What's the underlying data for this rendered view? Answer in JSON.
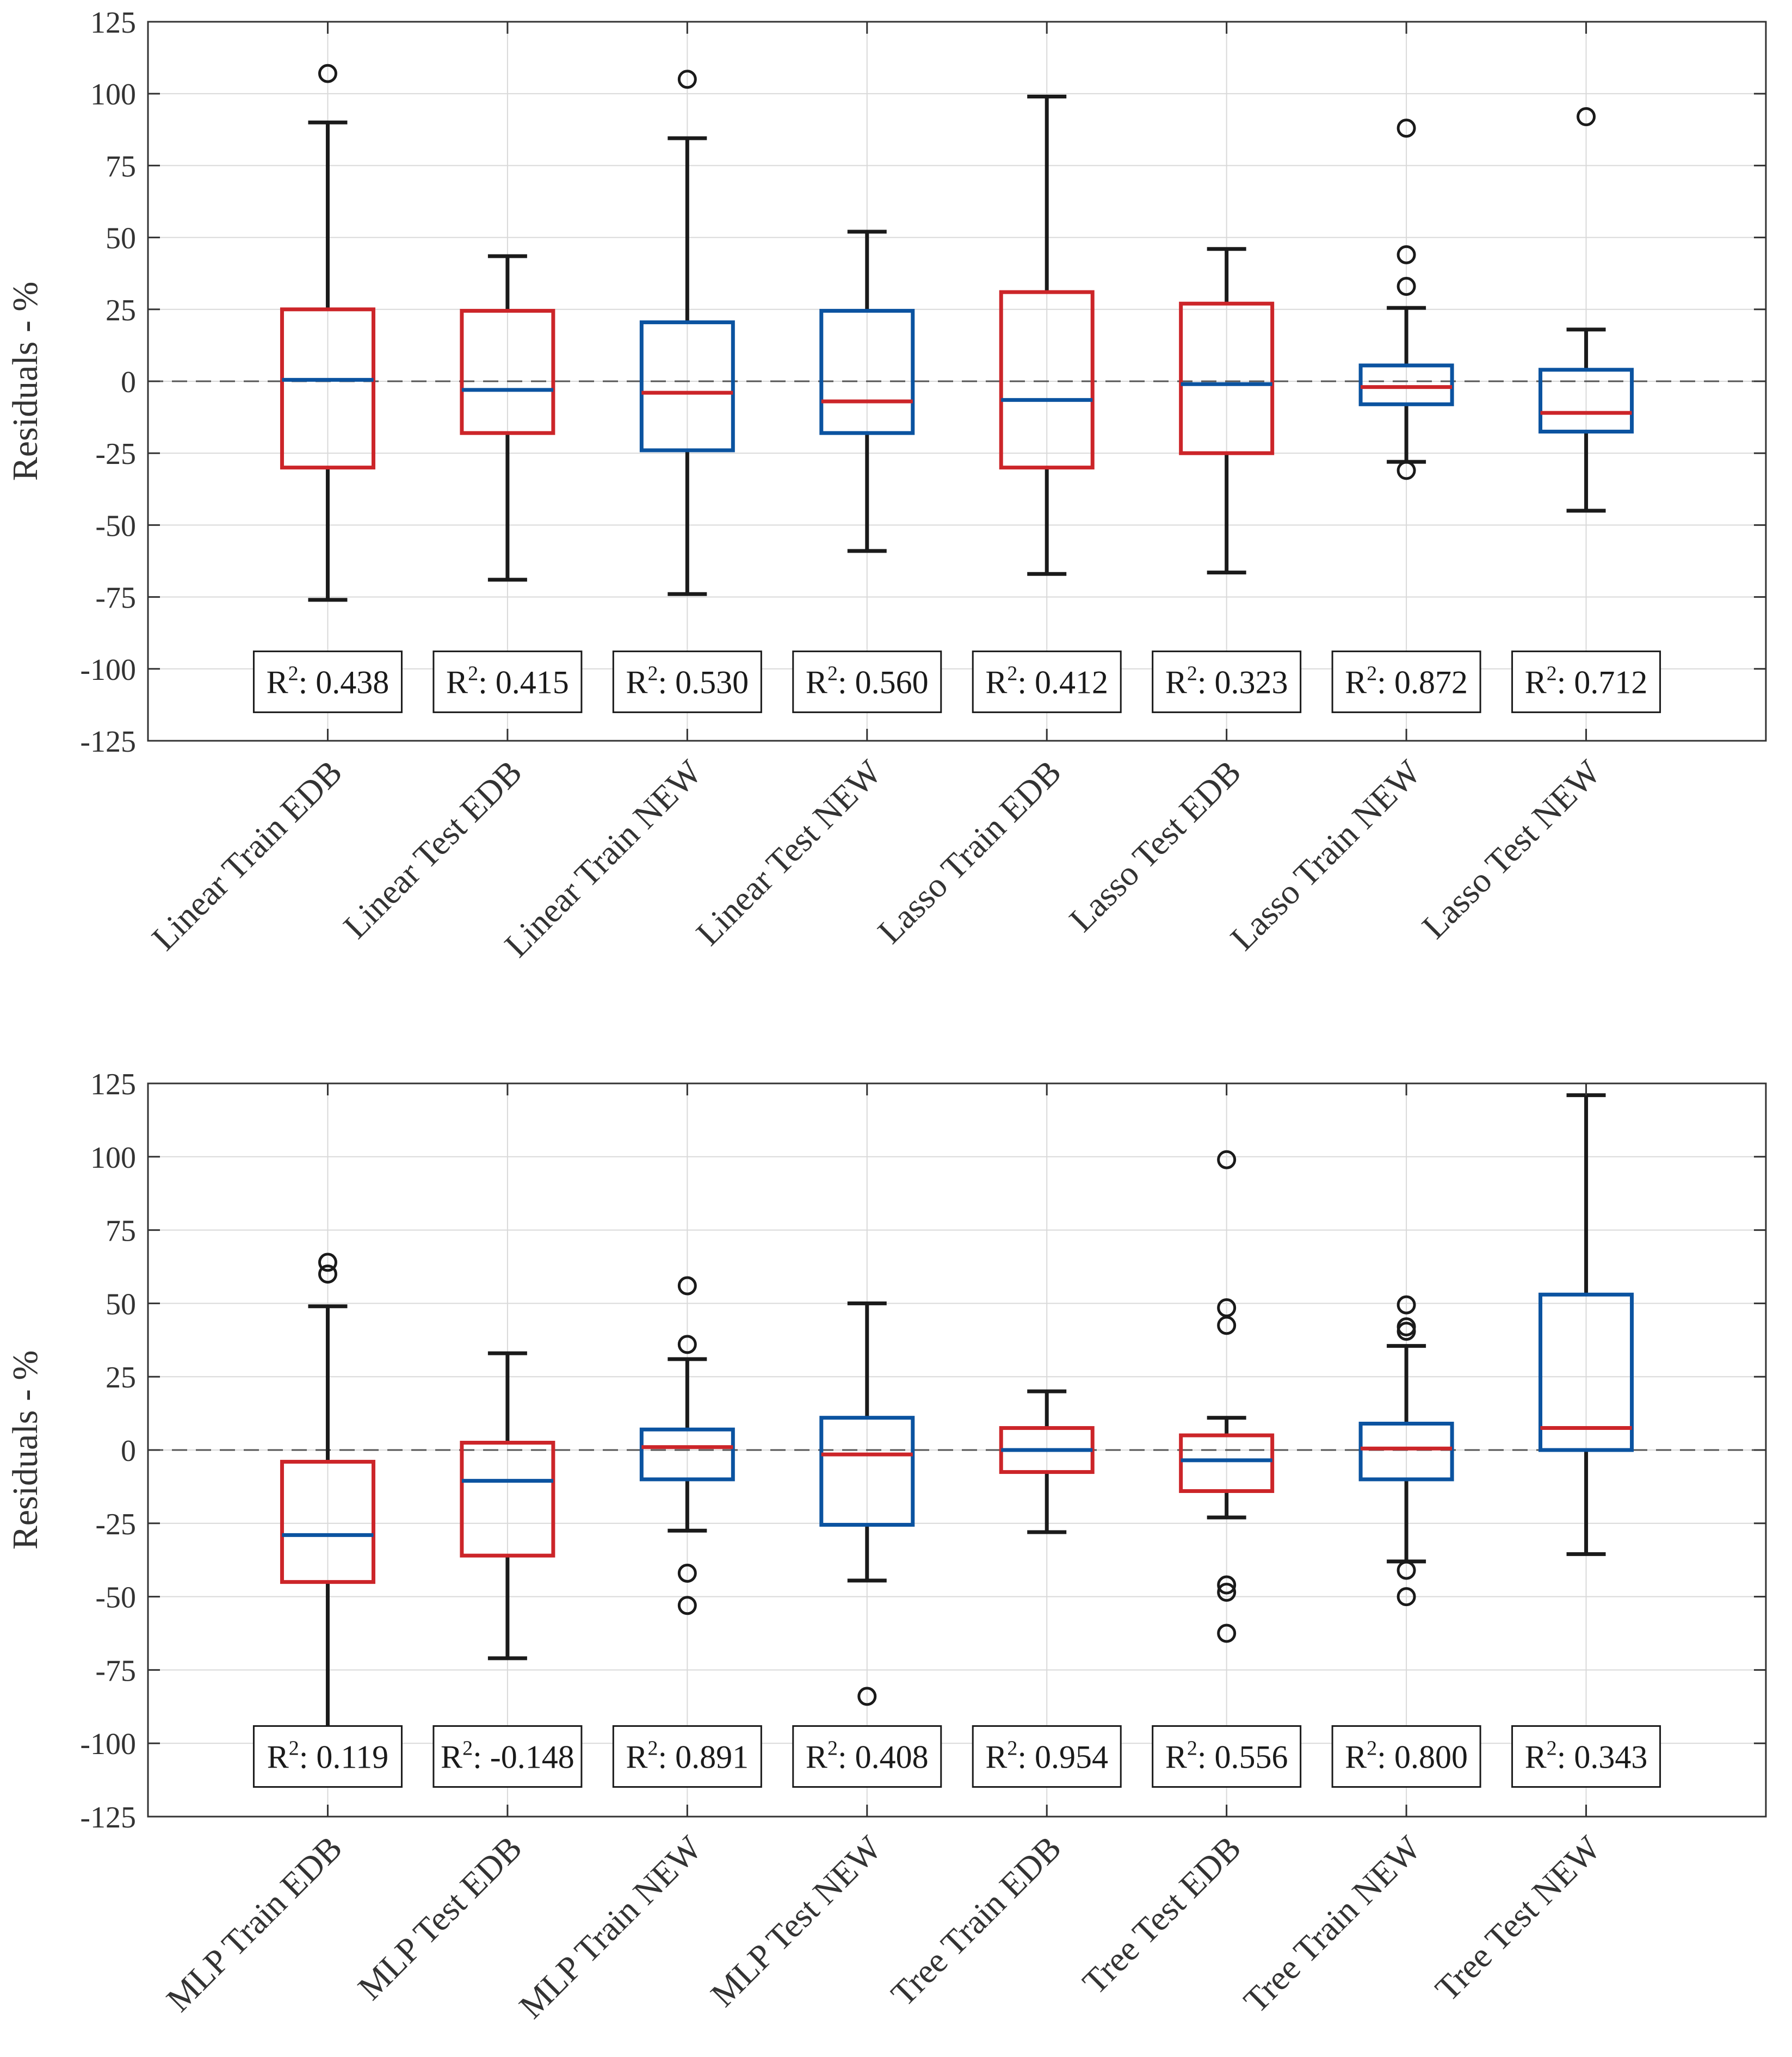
{
  "chart_data": [
    {
      "type": "boxplot",
      "ylabel": "Residuals - %",
      "ylim": [
        -125,
        125
      ],
      "yticks": [
        -125,
        -100,
        -75,
        -50,
        -25,
        0,
        25,
        50,
        75,
        100,
        125
      ],
      "grid": true,
      "zero_reference_line": "dashed",
      "r2_prefix": "R",
      "r2_exponent": "2",
      "categories": [
        "Linear Train EDB",
        "Linear Test EDB",
        "Linear Train NEW",
        "Linear Test NEW",
        "Lasso Train EDB",
        "Lasso Test EDB",
        "Lasso Train NEW",
        "Lasso Test NEW"
      ],
      "boxes": [
        {
          "color": "red",
          "whisker_low": -76,
          "q1": -30,
          "median": 0.5,
          "q3": 25,
          "whisker_high": 90,
          "outliers": [
            107
          ],
          "r2": ": 0.438"
        },
        {
          "color": "red",
          "whisker_low": -69,
          "q1": -18,
          "median": -3,
          "q3": 24.5,
          "whisker_high": 43.5,
          "outliers": [],
          "r2": ": 0.415"
        },
        {
          "color": "blue",
          "whisker_low": -74,
          "q1": -24,
          "median": -4,
          "q3": 20.5,
          "whisker_high": 84.5,
          "outliers": [
            105
          ],
          "r2": ": 0.530"
        },
        {
          "color": "blue",
          "whisker_low": -59,
          "q1": -18,
          "median": -7,
          "q3": 24.5,
          "whisker_high": 52,
          "outliers": [],
          "r2": ": 0.560"
        },
        {
          "color": "red",
          "whisker_low": -67,
          "q1": -30,
          "median": -6.5,
          "q3": 31,
          "whisker_high": 99,
          "outliers": [],
          "r2": ": 0.412"
        },
        {
          "color": "red",
          "whisker_low": -66.5,
          "q1": -25,
          "median": -1,
          "q3": 27,
          "whisker_high": 46,
          "outliers": [],
          "r2": ": 0.323"
        },
        {
          "color": "blue",
          "whisker_low": -28,
          "q1": -8,
          "median": -2,
          "q3": 5.5,
          "whisker_high": 25.5,
          "outliers": [
            88,
            44,
            33,
            -31
          ],
          "r2": ": 0.872"
        },
        {
          "color": "blue",
          "whisker_low": -45,
          "q1": -17.5,
          "median": -11,
          "q3": 4,
          "whisker_high": 18,
          "outliers": [
            92
          ],
          "r2": ": 0.712"
        }
      ]
    },
    {
      "type": "boxplot",
      "ylabel": "Residuals - %",
      "ylim": [
        -125,
        125
      ],
      "yticks": [
        -125,
        -100,
        -75,
        -50,
        -25,
        0,
        25,
        50,
        75,
        100,
        125
      ],
      "grid": true,
      "zero_reference_line": "dashed",
      "r2_prefix": "R",
      "r2_exponent": "2",
      "categories": [
        "MLP Train EDB",
        "MLP Test EDB",
        "MLP Train NEW",
        "MLP Test NEW",
        "Tree Train EDB",
        "Tree Test EDB",
        "Tree Train NEW",
        "Tree Test NEW"
      ],
      "boxes": [
        {
          "color": "red",
          "whisker_low": -100,
          "q1": -45,
          "median": -29,
          "q3": -4,
          "whisker_high": 49,
          "outliers": [
            64,
            60
          ],
          "r2": ": 0.119"
        },
        {
          "color": "red",
          "whisker_low": -71,
          "q1": -36,
          "median": -10.5,
          "q3": 2.5,
          "whisker_high": 33,
          "outliers": [],
          "r2": ": -0.148"
        },
        {
          "color": "blue",
          "whisker_low": -27.5,
          "q1": -10,
          "median": 1,
          "q3": 7,
          "whisker_high": 31,
          "outliers": [
            56,
            36,
            -42,
            -53
          ],
          "r2": ": 0.891"
        },
        {
          "color": "blue",
          "whisker_low": -44.5,
          "q1": -25.5,
          "median": -1.5,
          "q3": 11,
          "whisker_high": 50,
          "outliers": [
            -84
          ],
          "r2": ": 0.408"
        },
        {
          "color": "red",
          "whisker_low": -28,
          "q1": -7.5,
          "median": 0,
          "q3": 7.5,
          "whisker_high": 20,
          "outliers": [],
          "r2": ": 0.954"
        },
        {
          "color": "red",
          "whisker_low": -23,
          "q1": -14,
          "median": -3.5,
          "q3": 5,
          "whisker_high": 11,
          "outliers": [
            99,
            48.5,
            42.5,
            -46,
            -48.5,
            -62.5
          ],
          "r2": ": 0.556"
        },
        {
          "color": "blue",
          "whisker_low": -38,
          "q1": -10,
          "median": 0.5,
          "q3": 9,
          "whisker_high": 35.5,
          "outliers": [
            49.5,
            42,
            40.5,
            -41,
            -50
          ],
          "r2": ": 0.800"
        },
        {
          "color": "blue",
          "whisker_low": -35.5,
          "q1": 0,
          "median": 7.5,
          "q3": 53,
          "whisker_high": 121,
          "outliers": [],
          "r2": ": 0.343"
        }
      ]
    }
  ],
  "colors": {
    "red": "#cc2529",
    "blue": "#0b53a0",
    "whisker": "#1a1a1a",
    "grid": "#d9d9d9",
    "axis": "#333333"
  }
}
